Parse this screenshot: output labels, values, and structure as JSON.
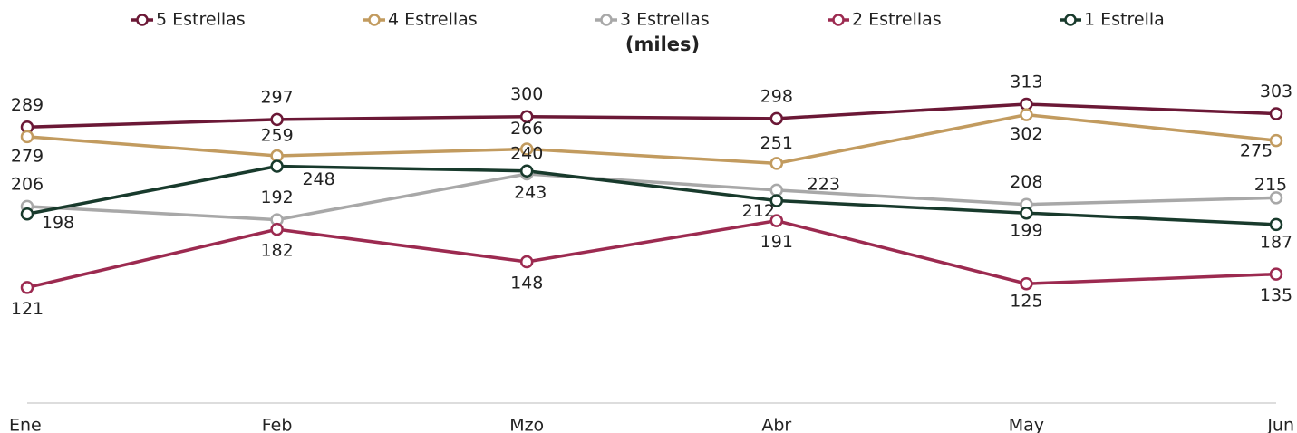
{
  "chart_data": {
    "type": "line",
    "subtitle": "(miles)",
    "categories": [
      "Ene",
      "Feb",
      "Mzo",
      "Abr",
      "May",
      "Jun"
    ],
    "ylim": [
      0,
      350
    ],
    "series": [
      {
        "name": "5 Estrellas",
        "color": "#6b1836",
        "values": [
          289,
          297,
          300,
          298,
          313,
          303
        ]
      },
      {
        "name": "4 Estrellas",
        "color": "#c29b5f",
        "values": [
          279,
          259,
          266,
          251,
          302,
          275
        ]
      },
      {
        "name": "3 Estrellas",
        "color": "#a8a8a8",
        "values": [
          206,
          192,
          240,
          223,
          208,
          215
        ]
      },
      {
        "name": "2 Estrellas",
        "color": "#9c2a50",
        "values": [
          121,
          182,
          148,
          191,
          125,
          135
        ]
      },
      {
        "name": "1 Estrella",
        "color": "#183a2c",
        "values": [
          198,
          248,
          243,
          212,
          199,
          187
        ]
      }
    ]
  }
}
